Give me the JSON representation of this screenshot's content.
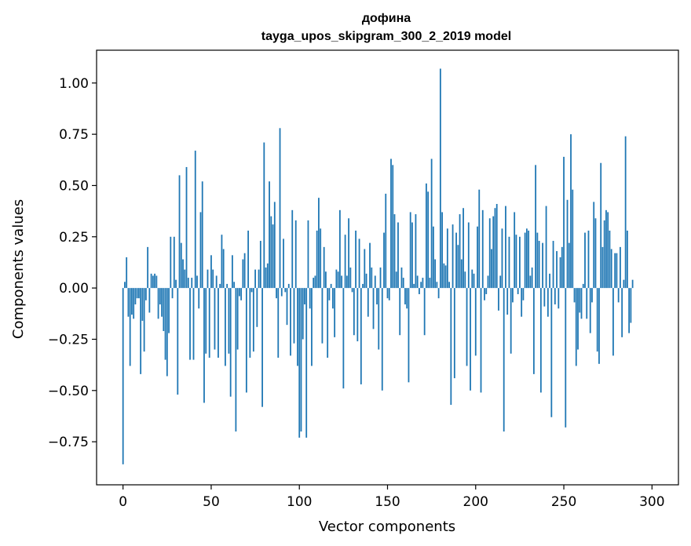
{
  "chart_data": {
    "type": "bar",
    "title": "дофина",
    "subtitle": "tayga_upos_skipgram_300_2_2019 model",
    "xlabel": "Vector components",
    "ylabel": "Components values",
    "xlim": [
      -15,
      315
    ],
    "ylim": [
      -0.96,
      1.16
    ],
    "xticks": [
      0,
      50,
      100,
      150,
      200,
      250,
      300
    ],
    "xtick_labels": [
      "0",
      "50",
      "100",
      "150",
      "200",
      "250",
      "300"
    ],
    "yticks": [
      -0.75,
      -0.5,
      -0.25,
      0.0,
      0.25,
      0.5,
      0.75,
      1.0
    ],
    "ytick_labels": [
      "−0.75",
      "−0.50",
      "−0.25",
      "0.00",
      "0.25",
      "0.50",
      "0.75",
      "1.00"
    ],
    "grid": false,
    "bar_color": "#1f77b4",
    "values": [
      -0.86,
      0.03,
      0.15,
      -0.14,
      -0.38,
      -0.13,
      -0.15,
      -0.08,
      -0.05,
      -0.05,
      -0.42,
      -0.16,
      -0.31,
      -0.06,
      0.2,
      -0.12,
      0.07,
      0.06,
      0.07,
      0.06,
      -0.15,
      -0.08,
      -0.14,
      -0.21,
      -0.35,
      -0.43,
      -0.22,
      0.25,
      -0.05,
      0.25,
      0.04,
      -0.52,
      0.55,
      0.22,
      0.14,
      0.09,
      0.59,
      0.05,
      -0.35,
      0.05,
      -0.35,
      0.67,
      0.06,
      -0.1,
      0.37,
      0.52,
      -0.56,
      -0.32,
      0.09,
      -0.34,
      0.16,
      0.09,
      -0.3,
      0.06,
      -0.34,
      0.02,
      0.26,
      0.19,
      -0.38,
      0.02,
      -0.32,
      -0.53,
      0.16,
      0.03,
      -0.7,
      -0.3,
      -0.04,
      -0.06,
      0.14,
      0.17,
      -0.51,
      0.28,
      -0.34,
      -0.02,
      -0.31,
      0.09,
      -0.19,
      0.09,
      0.23,
      -0.58,
      0.71,
      0.1,
      0.12,
      0.52,
      0.35,
      0.31,
      0.42,
      -0.05,
      -0.34,
      0.78,
      -0.04,
      0.24,
      -0.02,
      -0.18,
      0.02,
      -0.33,
      0.38,
      -0.27,
      0.33,
      -0.38,
      -0.73,
      -0.7,
      -0.25,
      -0.08,
      -0.73,
      0.33,
      -0.1,
      -0.38,
      0.05,
      0.06,
      0.28,
      0.44,
      0.29,
      -0.27,
      0.2,
      0.08,
      -0.34,
      -0.06,
      0.02,
      -0.1,
      -0.24,
      0.09,
      0.08,
      0.38,
      0.06,
      -0.49,
      0.26,
      0.06,
      0.34,
      0.1,
      -0.02,
      -0.23,
      0.28,
      -0.26,
      0.24,
      -0.47,
      0.02,
      0.19,
      0.07,
      -0.14,
      0.22,
      0.1,
      -0.2,
      0.06,
      -0.08,
      -0.3,
      0.1,
      -0.5,
      0.27,
      0.46,
      -0.05,
      -0.06,
      0.63,
      0.6,
      0.36,
      0.08,
      0.32,
      -0.23,
      0.1,
      0.05,
      -0.08,
      -0.1,
      -0.46,
      0.37,
      0.32,
      0.02,
      0.36,
      0.06,
      -0.03,
      0.03,
      0.05,
      -0.23,
      0.51,
      0.47,
      0.05,
      0.63,
      0.3,
      0.14,
      0.03,
      -0.05,
      1.07,
      0.37,
      0.12,
      0.11,
      0.29,
      0.03,
      -0.57,
      0.31,
      -0.44,
      0.27,
      0.21,
      0.36,
      0.14,
      0.39,
      0.08,
      -0.38,
      0.32,
      -0.5,
      0.09,
      0.07,
      -0.33,
      0.3,
      0.48,
      -0.51,
      0.38,
      -0.06,
      -0.03,
      0.06,
      0.34,
      0.19,
      0.35,
      0.39,
      0.41,
      -0.11,
      0.06,
      0.29,
      -0.7,
      0.4,
      -0.13,
      0.25,
      -0.32,
      -0.07,
      0.37,
      0.26,
      -0.03,
      0.25,
      -0.14,
      -0.06,
      0.27,
      0.29,
      0.28,
      0.06,
      0.1,
      -0.42,
      0.6,
      0.27,
      0.23,
      -0.51,
      0.22,
      -0.09,
      0.4,
      -0.14,
      0.07,
      -0.63,
      0.23,
      -0.08,
      0.18,
      -0.1,
      0.15,
      0.2,
      0.64,
      -0.68,
      0.43,
      0.22,
      0.75,
      0.48,
      -0.07,
      -0.38,
      -0.3,
      -0.12,
      -0.15,
      0.02,
      0.27,
      -0.15,
      0.28,
      -0.22,
      -0.07,
      0.42,
      0.34,
      -0.31,
      -0.37,
      0.61,
      0.2,
      0.33,
      0.38,
      0.37,
      0.28,
      0.19,
      -0.33,
      0.17,
      0.17,
      -0.07,
      0.2,
      -0.24,
      0.04,
      0.74,
      0.28,
      -0.22,
      -0.17,
      0.04
    ]
  }
}
